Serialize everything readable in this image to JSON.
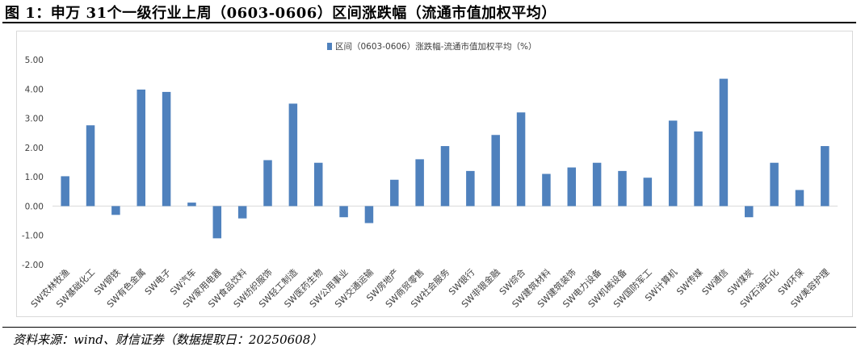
{
  "figure": {
    "title": "图 1：申万 31个一级行业上周（0603-0606）区间涨跌幅（流通市值加权平均）",
    "source": "资料来源：wind、财信证券（数据提取日：20250608）"
  },
  "chart_data": {
    "type": "bar",
    "title": "",
    "xlabel": "",
    "ylabel": "",
    "ylim": [
      -2.0,
      5.0
    ],
    "yticks": [
      5.0,
      4.0,
      3.0,
      2.0,
      1.0,
      0.0,
      -1.0,
      -2.0
    ],
    "ytick_labels": [
      "5.00",
      "4.00",
      "3.00",
      "2.00",
      "1.00",
      "0.00",
      "-1.00",
      "-2.00"
    ],
    "grid": false,
    "legend_position": "top",
    "bar_color": "#4f81bd",
    "categories": [
      "SW农林牧渔",
      "SW基础化工",
      "SW钢铁",
      "SW有色金属",
      "SW电子",
      "SW汽车",
      "SW家用电器",
      "SW食品饮料",
      "SW纺织服饰",
      "SW轻工制造",
      "SW医药生物",
      "SW公用事业",
      "SW交通运输",
      "SW房地产",
      "SW商贸零售",
      "SW社会服务",
      "SW银行",
      "SW非银金融",
      "SW综合",
      "SW建筑材料",
      "SW建筑装饰",
      "SW电力设备",
      "SW机械设备",
      "SW国防军工",
      "SW计算机",
      "SW传媒",
      "SW通信",
      "SW煤炭",
      "SW石油石化",
      "SW环保",
      "SW美容护理"
    ],
    "series": [
      {
        "name": "区间（0603-0606）涨跌幅-流通市值加权平均（%）",
        "values": [
          1.02,
          2.76,
          -0.3,
          3.98,
          3.9,
          0.12,
          -1.1,
          -0.42,
          1.57,
          3.5,
          1.48,
          -0.38,
          -0.58,
          0.9,
          1.6,
          2.05,
          1.2,
          2.43,
          3.2,
          1.1,
          1.32,
          1.48,
          1.2,
          0.97,
          2.92,
          2.55,
          4.35,
          -0.38,
          1.48,
          0.55,
          2.05
        ]
      }
    ]
  }
}
